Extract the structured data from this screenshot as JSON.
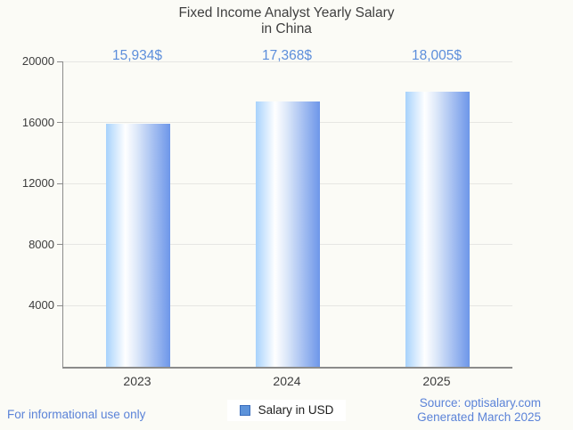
{
  "title": {
    "line1": "Fixed Income Analyst Yearly Salary",
    "line2": "in China"
  },
  "legend": {
    "label": "Salary in USD"
  },
  "footer": {
    "left": "For informational use only",
    "source": "Source: optisalary.com",
    "generated": "Generated March 2025"
  },
  "colors": {
    "background": "#fbfbf6",
    "title_text": "#3f3f3f",
    "axis_text": "#3d3d3d",
    "axis_line": "#8b8b8b",
    "gridline": "#e6e6e3",
    "blue_text": "#5b83d8",
    "value_label_text": "#5c8edb",
    "bar_edge_light": "#a7d2fc",
    "bar_highlight": "#ffffff",
    "bar_edge_dark": "#6d96e9",
    "legend_swatch_fill": "#5d93da",
    "legend_swatch_border": "#3a6dbd"
  },
  "chart_data": {
    "type": "bar",
    "title": "Fixed Income Analyst Yearly Salary in China",
    "categories": [
      "2023",
      "2024",
      "2025"
    ],
    "values": [
      15934,
      17368,
      18005
    ],
    "value_labels": [
      "15,934$",
      "17,368$",
      "18,005$"
    ],
    "series": [
      {
        "name": "Salary in USD",
        "values": [
          15934,
          17368,
          18005
        ]
      }
    ],
    "xlabel": "",
    "ylabel": "",
    "ylim": [
      0,
      20000
    ],
    "yticks": [
      "20000",
      "16000",
      "12000",
      "8000",
      "4000"
    ],
    "grid": "horizontal",
    "legend_position": "bottom"
  }
}
